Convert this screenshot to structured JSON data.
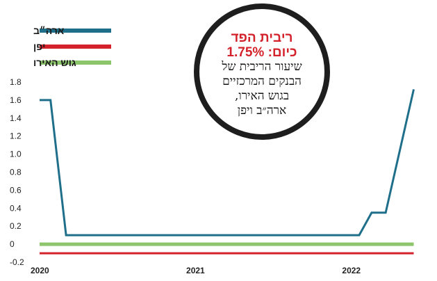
{
  "chart_data": {
    "type": "line",
    "title": "",
    "xlabel": "",
    "ylabel": "",
    "ylim": [
      -0.2,
      1.8
    ],
    "yticks": [
      -0.2,
      0,
      0.2,
      0.4,
      0.6,
      0.8,
      1.0,
      1.2,
      1.4,
      1.6,
      1.8
    ],
    "ytick_labels": [
      "-0.2",
      "0",
      "0.2",
      "0.4",
      "0.6",
      "0.8",
      "1.0",
      "1.2",
      "1.4",
      "1.6",
      "1.8"
    ],
    "xlim": [
      2020.0,
      2022.42
    ],
    "xticks": [
      2020,
      2021,
      2022
    ],
    "xtick_labels": [
      "2020",
      "2021",
      "2022"
    ],
    "grid": false,
    "legend_position": "top-left",
    "series": [
      {
        "name": "ארה״ב",
        "color": "#1f6f8b",
        "x": [
          2020.0,
          2020.07,
          2020.17,
          2021.0,
          2022.05,
          2022.13,
          2022.22,
          2022.4
        ],
        "y": [
          1.6,
          1.6,
          0.1,
          0.1,
          0.1,
          0.35,
          0.35,
          1.72
        ]
      },
      {
        "name": "יפן",
        "color": "#d3222b",
        "x": [
          2020.0,
          2022.4
        ],
        "y": [
          -0.1,
          -0.1
        ]
      },
      {
        "name": "גוש האירו",
        "color": "#8cc56b",
        "x": [
          2020.0,
          2022.4
        ],
        "y": [
          0.0,
          0.0
        ]
      }
    ]
  },
  "callout": {
    "highlight_line1": "ריבית הפד",
    "highlight_line2": "כיום: 1.75%",
    "text_lines": [
      "שיעור הריבית של",
      "הבנקים המרכזיים",
      "בגוש האירו,",
      "ארה״ב ויפן"
    ]
  }
}
